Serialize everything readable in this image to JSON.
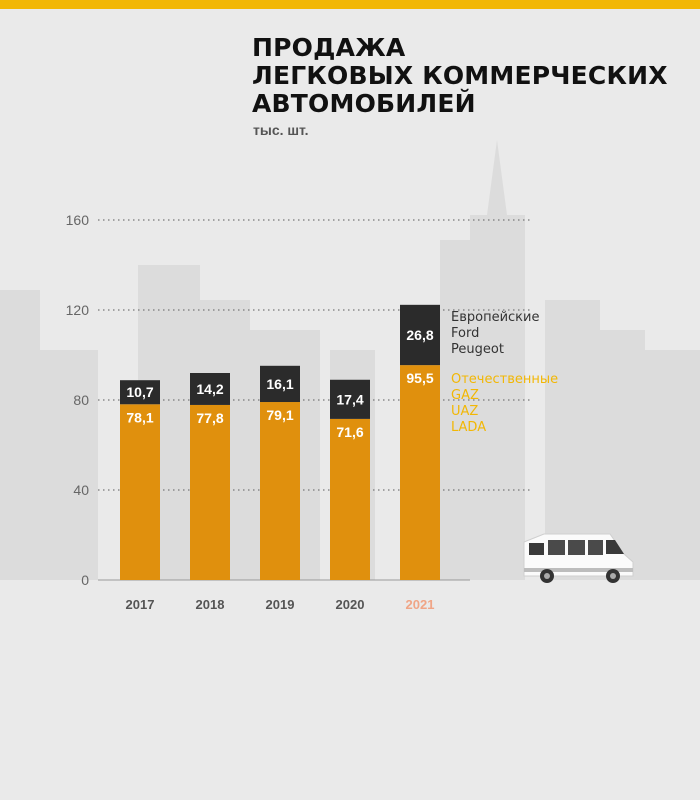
{
  "colors": {
    "stripe": "#f2b705",
    "domestic": "#e0900d",
    "european": "#2b2b2b",
    "domestic_legend": "#f2b705",
    "european_legend": "#333333",
    "highlight_year": "#f0a586"
  },
  "title_lines": [
    "ПРОДАЖА",
    "ЛЕГКОВЫХ КОММЕРЧЕСКИХ",
    "АВТОМОБИЛЕЙ"
  ],
  "subtitle": "тыс. шт.",
  "icons": [
    "van-icon"
  ],
  "chart_data": {
    "type": "bar",
    "stacked": true,
    "categories": [
      "2017",
      "2018",
      "2019",
      "2020",
      "2021"
    ],
    "highlight_category": "2021",
    "series": [
      {
        "name": "Отечественные",
        "brands": [
          "GAZ",
          "UAZ",
          "LADA"
        ],
        "values": [
          78.1,
          77.8,
          79.1,
          71.6,
          95.5
        ],
        "labels": [
          "78,1",
          "77,8",
          "79,1",
          "71,6",
          "95,5"
        ]
      },
      {
        "name": "Европейские",
        "brands": [
          "Ford",
          "Peugeot"
        ],
        "values": [
          10.7,
          14.2,
          16.1,
          17.4,
          26.8
        ],
        "labels": [
          "10,7",
          "14,2",
          "16,1",
          "17,4",
          "26,8"
        ]
      }
    ],
    "ylim": [
      0,
      160
    ],
    "yticks": [
      0,
      40,
      80,
      120,
      160
    ],
    "grid": true,
    "legend_position": "right of last bar"
  }
}
